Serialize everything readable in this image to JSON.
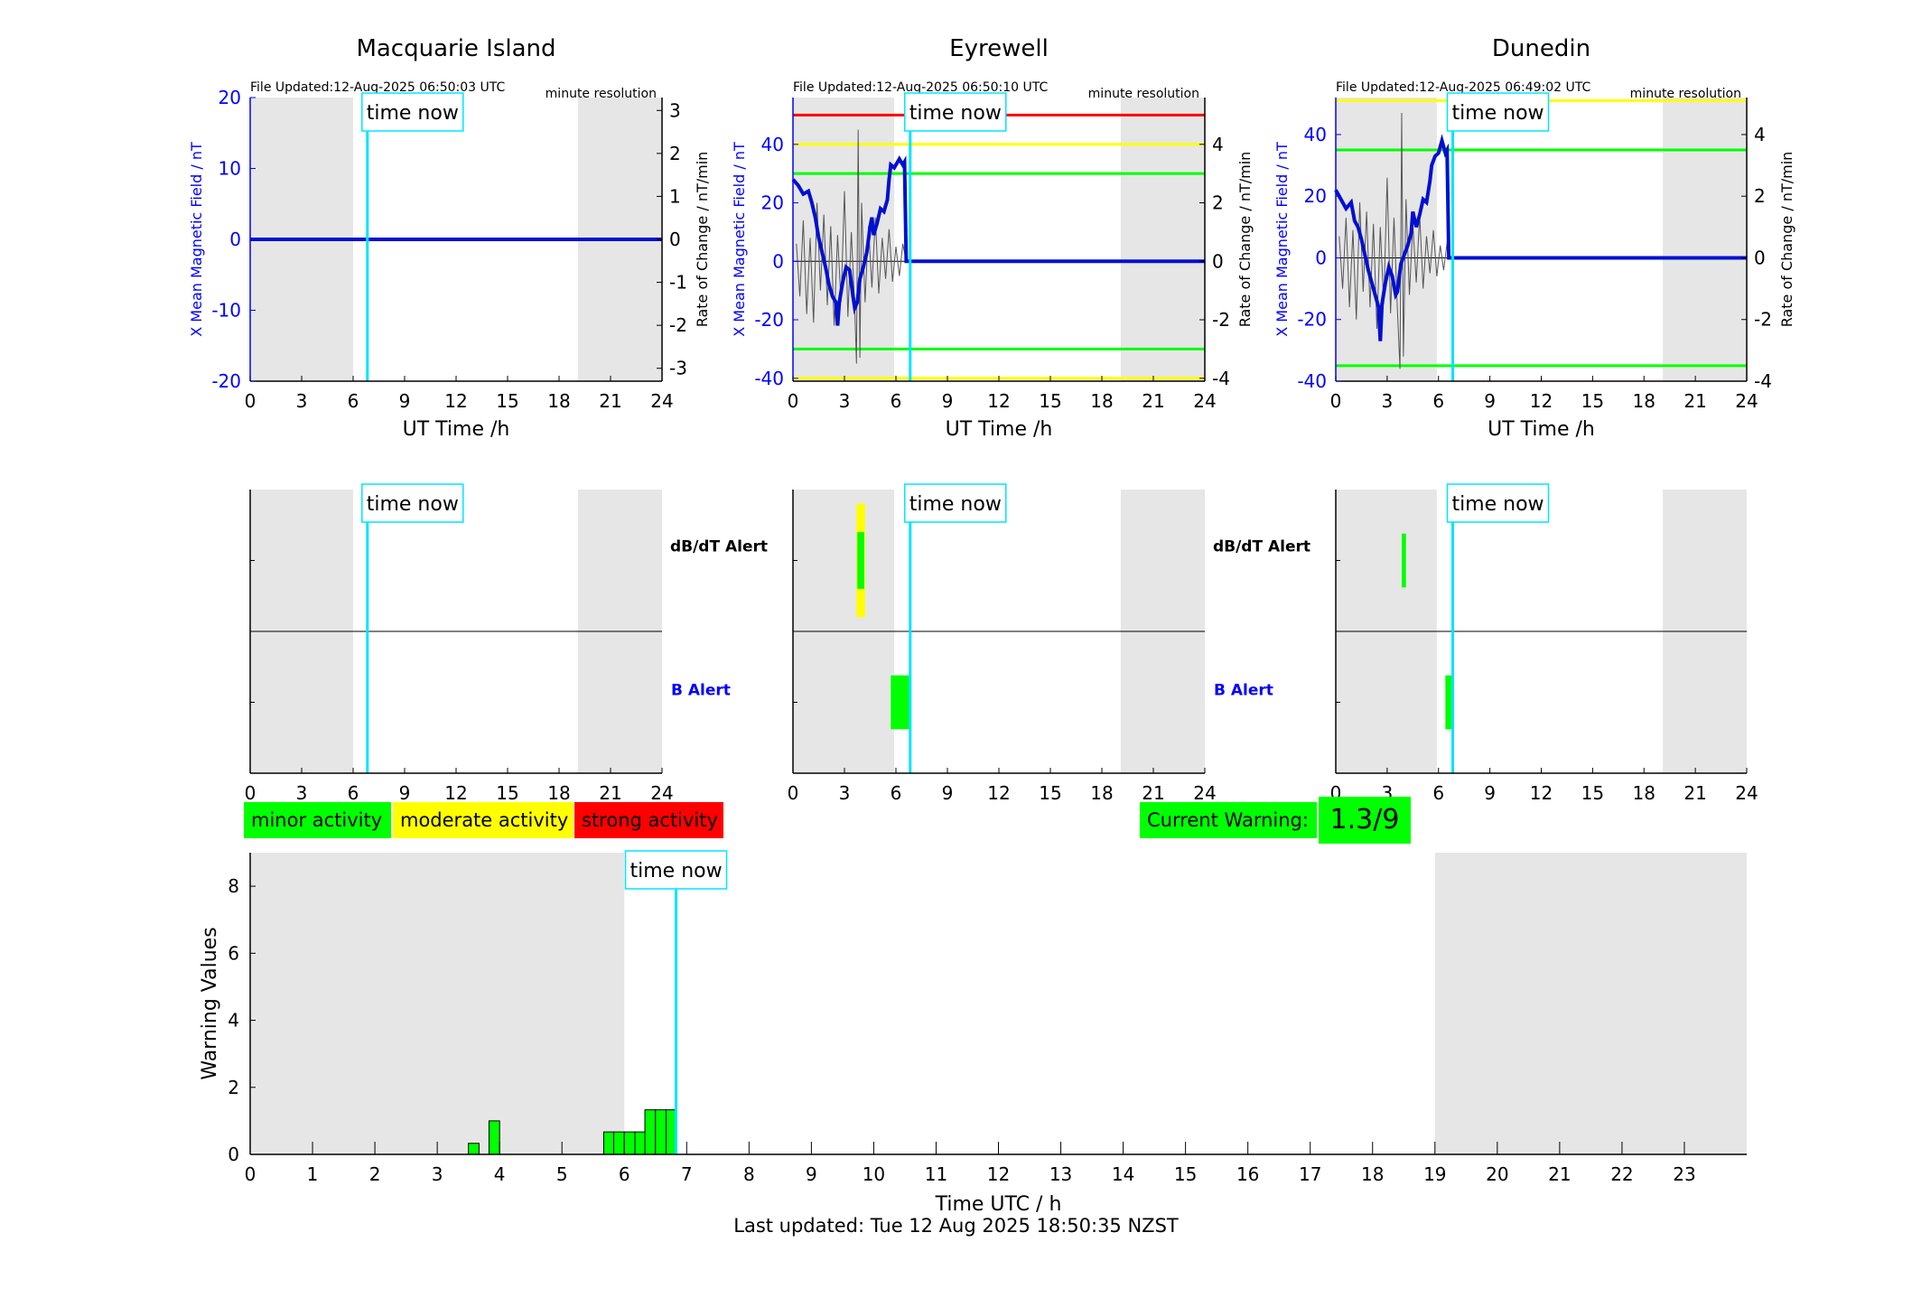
{
  "colors": {
    "night": "#e6e6e6",
    "now": "#00e5ff",
    "x_series": "#0010d0",
    "roc_series": "#555555",
    "minor": "#00ff00",
    "moderate": "#ffff00",
    "strong": "#ff0000",
    "axis_blue": "#0000ff"
  },
  "common": {
    "time_now": "time now",
    "minute_resolution": "minute resolution",
    "x_axis_label": "UT Time /h",
    "left_axis_label": "X Mean Magnetic Field / nT",
    "right_axis_label": "Rate of Change / nT/min",
    "alert_dbdt": "dB/dT Alert",
    "alert_b": "B Alert",
    "time_ticks": [
      "0",
      "3",
      "6",
      "9",
      "12",
      "15",
      "18",
      "21",
      "24"
    ],
    "time_now_hour": 6.83
  },
  "legend": {
    "minor": "minor activity",
    "moderate": "moderate activity",
    "strong": "strong activity"
  },
  "current_warning": {
    "label": "Current Warning:",
    "value": "1.3/9"
  },
  "footer": {
    "last_updated": "Last updated: Tue 12 Aug 2025 18:50:35 NZST"
  },
  "chart_data": [
    {
      "type": "line",
      "title": "Macquarie Island",
      "file_updated": "File Updated:12-Aug-2025 06:50:03 UTC",
      "xlim": [
        0,
        24
      ],
      "ylim": [
        -20,
        20
      ],
      "y_ticks": [
        "20",
        "10",
        "0",
        "-10",
        "-20"
      ],
      "y2lim": [
        -3.3,
        3.3
      ],
      "y2_ticks": [
        "3",
        "2",
        "1",
        "0",
        "-1",
        "-2",
        "-3"
      ],
      "night_hours": [
        [
          0,
          6
        ],
        [
          19.1,
          24
        ]
      ],
      "thresholds": [],
      "x_series": [
        [
          0,
          0
        ],
        [
          24,
          0
        ]
      ],
      "roc_series": [],
      "alerts": {
        "dbdt": [],
        "b": []
      }
    },
    {
      "type": "line",
      "title": "Eyrewell",
      "file_updated": "File Updated:12-Aug-2025 06:50:10 UTC",
      "xlim": [
        0,
        24
      ],
      "ylim": [
        -41,
        56
      ],
      "y_ticks": [
        "40",
        "20",
        "0",
        "-20",
        "-40"
      ],
      "y2lim": [
        -4.1,
        5.6
      ],
      "y2_ticks": [
        "4",
        "2",
        "0",
        "-2",
        "-4"
      ],
      "night_hours": [
        [
          0,
          5.9
        ],
        [
          19.1,
          24
        ]
      ],
      "thresholds": [
        {
          "value": 50,
          "color": "#ff0000"
        },
        {
          "value": 40,
          "color": "#ffff00"
        },
        {
          "value": 30,
          "color": "#00ff00"
        },
        {
          "value": -30,
          "color": "#00ff00"
        },
        {
          "value": -40,
          "color": "#ffff00"
        }
      ],
      "x_series": [
        [
          0,
          28
        ],
        [
          0.3,
          26
        ],
        [
          0.6,
          23
        ],
        [
          0.9,
          24
        ],
        [
          1.1,
          20
        ],
        [
          1.3,
          15
        ],
        [
          1.5,
          8
        ],
        [
          1.7,
          3
        ],
        [
          1.9,
          -2
        ],
        [
          2.1,
          -8
        ],
        [
          2.3,
          -12
        ],
        [
          2.5,
          -14
        ],
        [
          2.6,
          -22
        ],
        [
          2.7,
          -14
        ],
        [
          2.9,
          -7
        ],
        [
          3.1,
          -2
        ],
        [
          3.3,
          -3
        ],
        [
          3.5,
          -12
        ],
        [
          3.6,
          -16
        ],
        [
          3.75,
          -14
        ],
        [
          3.9,
          -6
        ],
        [
          4.1,
          -2
        ],
        [
          4.3,
          3
        ],
        [
          4.5,
          12
        ],
        [
          4.6,
          15
        ],
        [
          4.7,
          9
        ],
        [
          4.9,
          13
        ],
        [
          5.1,
          18
        ],
        [
          5.3,
          17
        ],
        [
          5.5,
          21
        ],
        [
          5.6,
          28
        ],
        [
          5.7,
          33
        ],
        [
          5.9,
          32
        ],
        [
          6.1,
          34
        ],
        [
          6.2,
          35
        ],
        [
          6.4,
          33
        ],
        [
          6.5,
          34
        ],
        [
          6.6,
          0
        ],
        [
          6.7,
          0
        ],
        [
          24,
          0
        ]
      ],
      "roc_series": [
        [
          0.2,
          0.6
        ],
        [
          0.4,
          -1.2
        ],
        [
          0.6,
          1.4
        ],
        [
          0.8,
          -1.8
        ],
        [
          1.0,
          0.8
        ],
        [
          1.2,
          -2.1
        ],
        [
          1.4,
          2.0
        ],
        [
          1.6,
          -1.0
        ],
        [
          1.8,
          1.6
        ],
        [
          2.0,
          -1.5
        ],
        [
          2.2,
          1.2
        ],
        [
          2.4,
          -2.2
        ],
        [
          2.6,
          0.9
        ],
        [
          2.8,
          -1.4
        ],
        [
          3.0,
          2.4
        ],
        [
          3.2,
          -1.9
        ],
        [
          3.4,
          1.0
        ],
        [
          3.6,
          -1.6
        ],
        [
          3.7,
          -3.5
        ],
        [
          3.8,
          4.5
        ],
        [
          3.9,
          -3.3
        ],
        [
          4.0,
          2.0
        ],
        [
          4.2,
          -1.4
        ],
        [
          4.4,
          1.2
        ],
        [
          4.6,
          -0.9
        ],
        [
          4.8,
          1.5
        ],
        [
          5.0,
          -1.1
        ],
        [
          5.2,
          0.8
        ],
        [
          5.4,
          -0.6
        ],
        [
          5.6,
          1.1
        ],
        [
          5.8,
          -0.7
        ],
        [
          6.0,
          0.5
        ],
        [
          6.2,
          -0.5
        ],
        [
          6.4,
          0.6
        ],
        [
          6.6,
          0
        ]
      ],
      "alerts": {
        "dbdt": [
          {
            "start": 3.7,
            "end": 4.2,
            "color": "#ffff00",
            "height": 0.8
          },
          {
            "start": 3.75,
            "end": 4.15,
            "color": "#00ff00",
            "height": 0.4
          }
        ],
        "b": [
          {
            "start": 5.7,
            "end": 6.9,
            "color": "#00ff00",
            "height": 0.38
          }
        ]
      }
    },
    {
      "type": "line",
      "title": "Dunedin",
      "file_updated": "File Updated:12-Aug-2025 06:49:02 UTC",
      "xlim": [
        0,
        24
      ],
      "ylim": [
        -40,
        52
      ],
      "y_ticks": [
        "40",
        "20",
        "0",
        "-20",
        "-40"
      ],
      "y2lim": [
        -4.0,
        5.2
      ],
      "y2_ticks": [
        "4",
        "2",
        "0",
        "-2",
        "-4"
      ],
      "night_hours": [
        [
          0,
          5.9
        ],
        [
          19.1,
          24
        ]
      ],
      "thresholds": [
        {
          "value": 51,
          "color": "#ffff00"
        },
        {
          "value": 35,
          "color": "#00ff00"
        },
        {
          "value": -35,
          "color": "#00ff00"
        }
      ],
      "x_series": [
        [
          0,
          22
        ],
        [
          0.3,
          19
        ],
        [
          0.6,
          16
        ],
        [
          0.9,
          18
        ],
        [
          1.1,
          12
        ],
        [
          1.3,
          10
        ],
        [
          1.5,
          6
        ],
        [
          1.7,
          1
        ],
        [
          1.9,
          -4
        ],
        [
          2.1,
          -8
        ],
        [
          2.3,
          -12
        ],
        [
          2.5,
          -16
        ],
        [
          2.6,
          -27
        ],
        [
          2.7,
          -15
        ],
        [
          2.9,
          -8
        ],
        [
          3.1,
          -3
        ],
        [
          3.3,
          -6
        ],
        [
          3.5,
          -12
        ],
        [
          3.6,
          -11
        ],
        [
          3.8,
          -2
        ],
        [
          4.0,
          1
        ],
        [
          4.2,
          4
        ],
        [
          4.4,
          8
        ],
        [
          4.5,
          15
        ],
        [
          4.7,
          10
        ],
        [
          4.9,
          14
        ],
        [
          5.1,
          19
        ],
        [
          5.3,
          18
        ],
        [
          5.5,
          25
        ],
        [
          5.6,
          30
        ],
        [
          5.8,
          33
        ],
        [
          6.0,
          34
        ],
        [
          6.2,
          38
        ],
        [
          6.4,
          34
        ],
        [
          6.5,
          35
        ],
        [
          6.6,
          0
        ],
        [
          6.7,
          0
        ],
        [
          24,
          0
        ]
      ],
      "roc_series": [
        [
          0.2,
          0.7
        ],
        [
          0.4,
          -1.0
        ],
        [
          0.6,
          1.3
        ],
        [
          0.8,
          -1.6
        ],
        [
          1.0,
          0.9
        ],
        [
          1.2,
          -2.0
        ],
        [
          1.4,
          1.8
        ],
        [
          1.6,
          -1.1
        ],
        [
          1.8,
          1.5
        ],
        [
          2.0,
          -1.6
        ],
        [
          2.2,
          1.1
        ],
        [
          2.4,
          -2.3
        ],
        [
          2.6,
          1.0
        ],
        [
          2.8,
          -1.5
        ],
        [
          3.0,
          2.6
        ],
        [
          3.2,
          -1.8
        ],
        [
          3.4,
          1.3
        ],
        [
          3.6,
          -1.7
        ],
        [
          3.75,
          -3.6
        ],
        [
          3.85,
          4.7
        ],
        [
          3.95,
          -3.2
        ],
        [
          4.1,
          1.9
        ],
        [
          4.3,
          -1.2
        ],
        [
          4.5,
          1.1
        ],
        [
          4.7,
          -0.8
        ],
        [
          4.9,
          1.4
        ],
        [
          5.1,
          -1.0
        ],
        [
          5.3,
          0.7
        ],
        [
          5.5,
          -0.5
        ],
        [
          5.7,
          0.9
        ],
        [
          5.9,
          -0.6
        ],
        [
          6.1,
          0.4
        ],
        [
          6.3,
          -0.4
        ],
        [
          6.5,
          0.5
        ],
        [
          6.6,
          0
        ]
      ],
      "alerts": {
        "dbdt": [
          {
            "start": 3.85,
            "end": 4.1,
            "color": "#00ff00",
            "height": 0.38
          }
        ],
        "b": [
          {
            "start": 6.4,
            "end": 6.75,
            "color": "#00ff00",
            "height": 0.38
          }
        ]
      }
    },
    {
      "type": "bar",
      "title": "",
      "xlabel": "Time UTC / h",
      "ylabel": "Warning Values",
      "xlim": [
        0,
        24
      ],
      "ylim": [
        0,
        9
      ],
      "x_ticks": [
        "0",
        "1",
        "2",
        "3",
        "4",
        "5",
        "6",
        "7",
        "8",
        "9",
        "10",
        "11",
        "12",
        "13",
        "14",
        "15",
        "16",
        "17",
        "18",
        "19",
        "20",
        "21",
        "22",
        "23"
      ],
      "y_ticks": [
        "0",
        "2",
        "4",
        "6",
        "8"
      ],
      "night_hours": [
        [
          0,
          6
        ],
        [
          19,
          24
        ]
      ],
      "time_now_hour": 6.83,
      "bars": [
        {
          "start": 3.5,
          "end": 3.67,
          "value": 0.33
        },
        {
          "start": 3.83,
          "end": 4.0,
          "value": 1.0
        },
        {
          "start": 5.67,
          "end": 5.83,
          "value": 0.67
        },
        {
          "start": 5.83,
          "end": 6.0,
          "value": 0.67
        },
        {
          "start": 6.0,
          "end": 6.17,
          "value": 0.67
        },
        {
          "start": 6.17,
          "end": 6.33,
          "value": 0.67
        },
        {
          "start": 6.33,
          "end": 6.5,
          "value": 1.33
        },
        {
          "start": 6.5,
          "end": 6.67,
          "value": 1.33
        },
        {
          "start": 6.67,
          "end": 6.83,
          "value": 1.33
        }
      ]
    }
  ]
}
